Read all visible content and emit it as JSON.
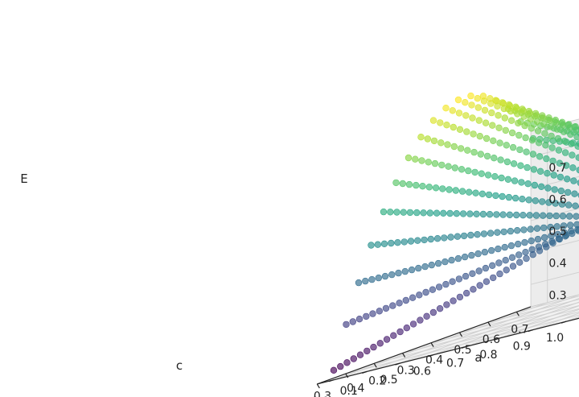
{
  "chart_data": {
    "type": "scatter",
    "projection": "3d",
    "title": "",
    "xlabel": "a",
    "ylabel": "c",
    "zlabel": "E",
    "xlim": [
      0.0,
      0.75
    ],
    "ylim": [
      0.25,
      1.05
    ],
    "zlim": [
      0.23,
      0.78
    ],
    "xticks": [
      0.0,
      0.1,
      0.2,
      0.3,
      0.4,
      0.5,
      0.6,
      0.7
    ],
    "xtick_labels": [
      "0.0",
      "0.1",
      "0.2",
      "0.3",
      "0.4",
      "0.5",
      "0.6",
      "0.7"
    ],
    "yticks": [
      1.0,
      0.9,
      0.8,
      0.7,
      0.6,
      0.5,
      0.4,
      0.3
    ],
    "ytick_labels": [
      "1.0",
      "0.9",
      "0.8",
      "0.7",
      "0.6",
      "0.5",
      "0.4",
      "0.3"
    ],
    "zticks": [
      0.3,
      0.4,
      0.5,
      0.6,
      0.7
    ],
    "ztick_labels": [
      "0.3",
      "0.4",
      "0.5",
      "0.6",
      "0.7"
    ],
    "grid": true,
    "colormap": "viridis",
    "marker_alpha": 0.65,
    "surface": {
      "a_range": [
        0.0,
        0.7
      ],
      "a_steps": 17,
      "c_range": [
        0.3,
        1.0
      ],
      "c_steps": 36,
      "anchor_points": [
        {
          "a": 0.0,
          "c": 1.0,
          "E": 0.5
        },
        {
          "a": 0.7,
          "c": 1.0,
          "E": 0.5
        },
        {
          "a": 0.0,
          "c": 0.3,
          "E": 0.26
        },
        {
          "a": 0.7,
          "c": 0.3,
          "E": 0.52
        },
        {
          "a": 0.35,
          "c": 0.3,
          "E": 0.76
        }
      ]
    }
  }
}
